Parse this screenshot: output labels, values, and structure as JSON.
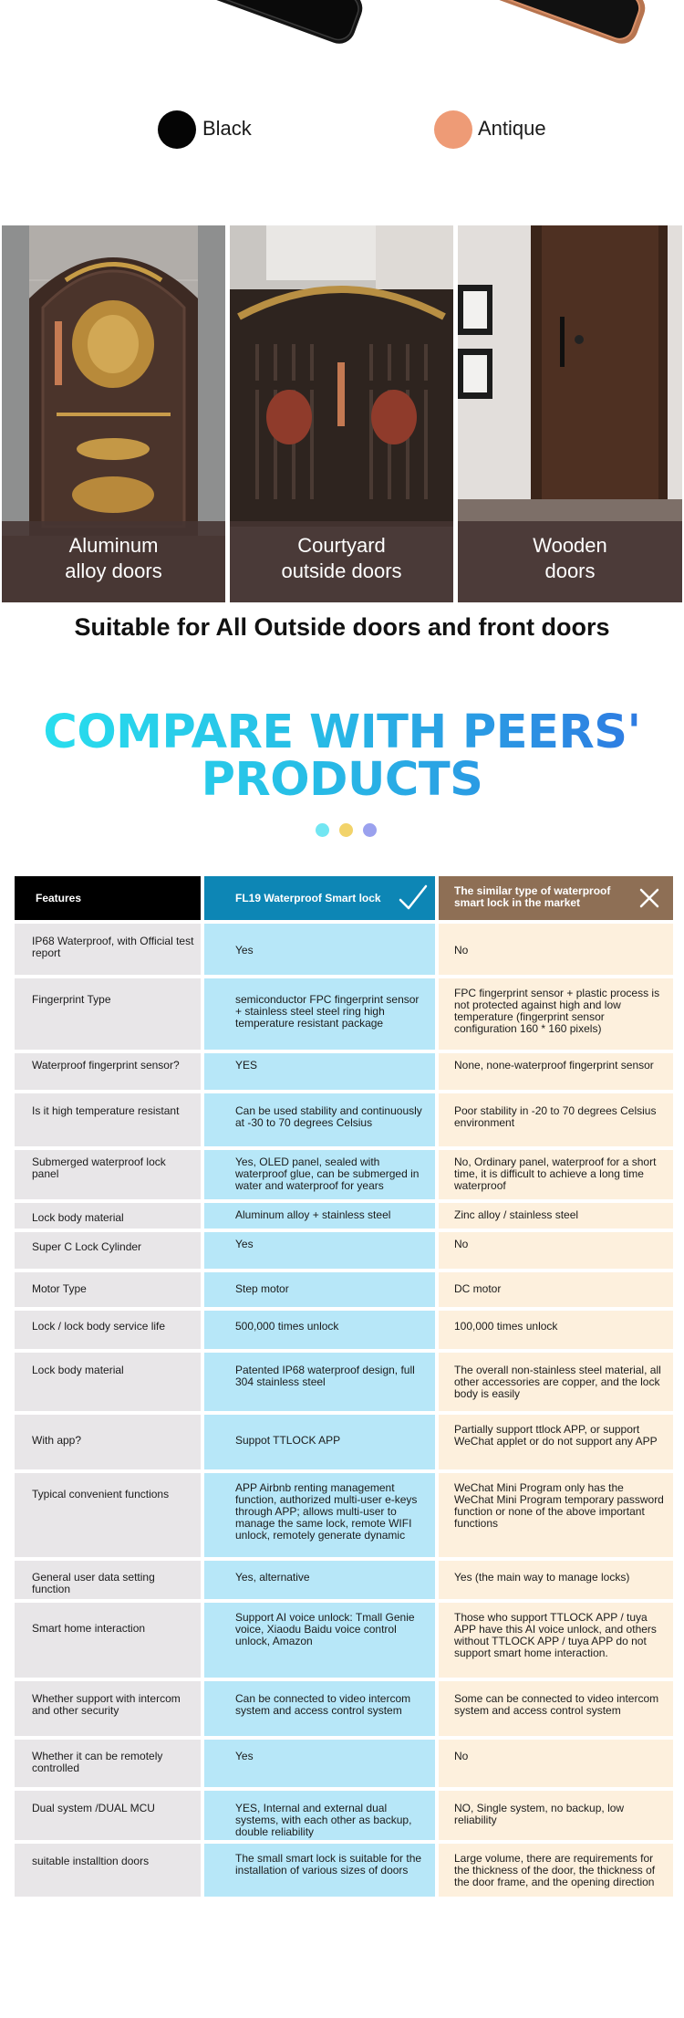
{
  "colors": {
    "options": [
      {
        "name": "Black",
        "swatch": "#050505"
      },
      {
        "name": "Antique",
        "swatch": "#ee9b76"
      }
    ]
  },
  "doors": {
    "cards": [
      {
        "line1": "Aluminum",
        "line2": "alloy doors"
      },
      {
        "line1": "Courtyard",
        "line2": "outside doors"
      },
      {
        "line1": "Wooden",
        "line2": "doors"
      }
    ],
    "title": "Suitable for All Outside doors and front doors"
  },
  "compare": {
    "title_line1": "COMPARE WITH PEERS'",
    "title_line2": "PRODUCTS",
    "dot_colors": [
      "#72e6f2",
      "#f2d36a",
      "#9aa1ee"
    ]
  },
  "table": {
    "headers": [
      "Features",
      "FL19 Waterproof Smart lock",
      "The similar type of waterproof smart lock in the market"
    ],
    "rows": [
      [
        "IP68 Waterproof, with Official test report",
        "Yes",
        "No"
      ],
      [
        "Fingerprint Type",
        "semiconductor FPC fingerprint sensor + stainless steel steel ring high temperature resistant package",
        "FPC fingerprint sensor + plastic process is not protected against high and low temperature (fingerprint sensor configuration 160 * 160 pixels)"
      ],
      [
        "Waterproof fingerprint sensor?",
        "YES",
        "None, none-waterproof fingerprint sensor"
      ],
      [
        "Is it high temperature resistant",
        "Can be used stability and continuously at -30 to 70 degrees Celsius",
        "Poor stability in -20 to 70 degrees  Celsius environment"
      ],
      [
        "Submerged waterproof lock panel",
        "Yes, OLED panel, sealed with waterproof glue, can be submerged in water and waterproof for years",
        "No, Ordinary panel, waterproof for a short time, it is difficult to achieve a long time waterproof"
      ],
      [
        "Lock body material",
        "Aluminum alloy + stainless steel",
        "Zinc alloy / stainless steel"
      ],
      [
        "Super C Lock Cylinder",
        "Yes",
        "No"
      ],
      [
        "Motor Type",
        "Step motor",
        "DC motor"
      ],
      [
        "Lock / lock body service life",
        "500,000 times unlock",
        "100,000 times unlock"
      ],
      [
        "Lock body material",
        "Patented IP68 waterproof design, full 304 stainless steel",
        "The overall non-stainless steel material, all other accessories are copper, and the lock body is easily"
      ],
      [
        "With app?",
        "Suppot TTLOCK APP",
        "Partially support ttlock APP, or support WeChat applet or do not support any APP"
      ],
      [
        "Typical convenient functions",
        "APP Airbnb renting management function, authorized multi-user e-keys through APP; allows multi-user to manage the same lock, remote WIFI unlock, remotely generate dynamic",
        "WeChat Mini Program only has the WeChat Mini Program temporary password function or none of the above important functions"
      ],
      [
        "General  user data setting function",
        "Yes, alternative",
        "Yes (the main way to manage locks)"
      ],
      [
        "Smart home interaction",
        "Support AI voice unlock: Tmall Genie voice, Xiaodu Baidu voice control unlock, Amazon",
        "Those who support TTLOCK APP / tuya APP have this AI voice unlock, and others without TTLOCK APP / tuya APP do not support smart home interaction."
      ],
      [
        "Whether support with intercom and other security",
        "Can be connected to video intercom system and access control system",
        "Some can be connected to video intercom system and access control system"
      ],
      [
        "Whether it can be remotely controlled",
        "Yes",
        "No"
      ],
      [
        "Dual system /DUAL MCU",
        "YES, Internal and external dual systems, with each other as backup, double reliability",
        "NO, Single system, no backup, low reliability"
      ],
      [
        "suitable installtion doors",
        "The small smart lock is suitable for the installation of various sizes of doors",
        "Large volume, there are requirements for the thickness of the door, the thickness of the door frame, and the opening direction"
      ]
    ]
  }
}
